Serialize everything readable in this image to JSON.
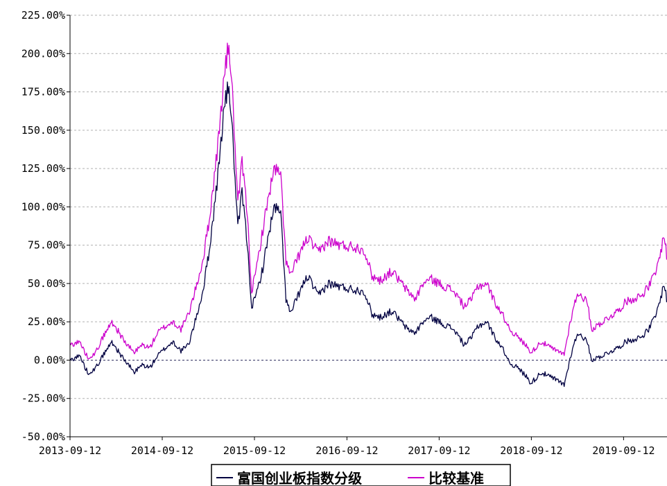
{
  "chart_data": {
    "type": "line",
    "title": "",
    "xlabel": "",
    "ylabel": "",
    "ylim": [
      -50,
      225
    ],
    "xlim": [
      "2013-09-12",
      "2020-06-30"
    ],
    "y_ticks": [
      -50,
      -25,
      0,
      25,
      50,
      75,
      100,
      125,
      150,
      175,
      200,
      225
    ],
    "y_tick_labels": [
      "-50.00%",
      "-25.00%",
      "0.00%",
      "25.00%",
      "50.00%",
      "75.00%",
      "100.00%",
      "125.00%",
      "150.00%",
      "175.00%",
      "200.00%",
      "225.00%"
    ],
    "x_ticks": [
      "2013-09-12",
      "2014-09-12",
      "2015-09-12",
      "2016-09-12",
      "2017-09-12",
      "2018-09-12",
      "2019-09-12"
    ],
    "grid": true,
    "legend_position": "bottom",
    "series": [
      {
        "name": "富国创业板指数分级",
        "color": "#000040",
        "points": [
          [
            "2013-09-12",
            0
          ],
          [
            "2013-10-20",
            3
          ],
          [
            "2013-11-20",
            -8
          ],
          [
            "2013-12-20",
            -6
          ],
          [
            "2014-01-20",
            3
          ],
          [
            "2014-02-25",
            12
          ],
          [
            "2014-03-25",
            5
          ],
          [
            "2014-04-25",
            -2
          ],
          [
            "2014-05-25",
            -8
          ],
          [
            "2014-06-25",
            -3
          ],
          [
            "2014-07-25",
            -5
          ],
          [
            "2014-08-25",
            3
          ],
          [
            "2014-09-25",
            8
          ],
          [
            "2014-10-25",
            12
          ],
          [
            "2014-11-25",
            6
          ],
          [
            "2014-12-25",
            10
          ],
          [
            "2015-01-20",
            25
          ],
          [
            "2015-02-20",
            45
          ],
          [
            "2015-03-20",
            75
          ],
          [
            "2015-04-20",
            120
          ],
          [
            "2015-05-15",
            165
          ],
          [
            "2015-06-03",
            180
          ],
          [
            "2015-06-20",
            140
          ],
          [
            "2015-07-08",
            85
          ],
          [
            "2015-07-25",
            110
          ],
          [
            "2015-08-15",
            75
          ],
          [
            "2015-09-01",
            35
          ],
          [
            "2015-09-15",
            40
          ],
          [
            "2015-10-15",
            60
          ],
          [
            "2015-11-10",
            85
          ],
          [
            "2015-12-01",
            100
          ],
          [
            "2015-12-25",
            95
          ],
          [
            "2016-01-15",
            40
          ],
          [
            "2016-02-01",
            30
          ],
          [
            "2016-03-10",
            45
          ],
          [
            "2016-04-10",
            55
          ],
          [
            "2016-05-20",
            42
          ],
          [
            "2016-07-01",
            50
          ],
          [
            "2016-08-15",
            48
          ],
          [
            "2016-10-10",
            46
          ],
          [
            "2016-11-20",
            45
          ],
          [
            "2016-12-20",
            30
          ],
          [
            "2017-01-20",
            28
          ],
          [
            "2017-03-10",
            32
          ],
          [
            "2017-05-10",
            20
          ],
          [
            "2017-06-10",
            18
          ],
          [
            "2017-07-10",
            25
          ],
          [
            "2017-08-10",
            28
          ],
          [
            "2017-09-12",
            25
          ],
          [
            "2017-11-10",
            20
          ],
          [
            "2017-12-20",
            10
          ],
          [
            "2018-01-20",
            15
          ],
          [
            "2018-02-10",
            22
          ],
          [
            "2018-03-20",
            25
          ],
          [
            "2018-04-20",
            15
          ],
          [
            "2018-05-20",
            8
          ],
          [
            "2018-06-20",
            -2
          ],
          [
            "2018-07-20",
            -5
          ],
          [
            "2018-08-20",
            -10
          ],
          [
            "2018-09-12",
            -15
          ],
          [
            "2018-10-20",
            -8
          ],
          [
            "2018-12-20",
            -13
          ],
          [
            "2019-01-20",
            -16
          ],
          [
            "2019-02-25",
            10
          ],
          [
            "2019-03-20",
            18
          ],
          [
            "2019-04-20",
            12
          ],
          [
            "2019-05-10",
            0
          ],
          [
            "2019-06-20",
            3
          ],
          [
            "2019-08-20",
            8
          ],
          [
            "2019-09-20",
            12
          ],
          [
            "2019-11-20",
            15
          ],
          [
            "2019-12-20",
            20
          ],
          [
            "2020-01-20",
            30
          ],
          [
            "2020-02-20",
            50
          ],
          [
            "2020-03-10",
            30
          ],
          [
            "2020-04-10",
            32
          ],
          [
            "2020-05-10",
            38
          ],
          [
            "2020-06-10",
            42
          ],
          [
            "2020-06-30",
            40
          ]
        ]
      },
      {
        "name": "比较基准",
        "color": "#cc00cc",
        "points": [
          [
            "2013-09-12",
            10
          ],
          [
            "2013-10-20",
            12
          ],
          [
            "2013-11-20",
            2
          ],
          [
            "2013-12-20",
            4
          ],
          [
            "2014-01-20",
            15
          ],
          [
            "2014-02-25",
            25
          ],
          [
            "2014-03-25",
            18
          ],
          [
            "2014-04-25",
            10
          ],
          [
            "2014-05-25",
            5
          ],
          [
            "2014-06-25",
            10
          ],
          [
            "2014-07-25",
            8
          ],
          [
            "2014-08-25",
            18
          ],
          [
            "2014-09-25",
            22
          ],
          [
            "2014-10-25",
            25
          ],
          [
            "2014-11-25",
            20
          ],
          [
            "2014-12-25",
            30
          ],
          [
            "2015-01-20",
            45
          ],
          [
            "2015-02-20",
            65
          ],
          [
            "2015-03-20",
            95
          ],
          [
            "2015-04-20",
            140
          ],
          [
            "2015-05-15",
            185
          ],
          [
            "2015-06-03",
            207
          ],
          [
            "2015-06-20",
            165
          ],
          [
            "2015-07-08",
            100
          ],
          [
            "2015-07-25",
            130
          ],
          [
            "2015-08-15",
            95
          ],
          [
            "2015-09-01",
            45
          ],
          [
            "2015-09-15",
            55
          ],
          [
            "2015-10-15",
            85
          ],
          [
            "2015-11-10",
            110
          ],
          [
            "2015-12-01",
            125
          ],
          [
            "2015-12-25",
            120
          ],
          [
            "2016-01-15",
            65
          ],
          [
            "2016-02-01",
            55
          ],
          [
            "2016-03-10",
            70
          ],
          [
            "2016-04-10",
            80
          ],
          [
            "2016-05-20",
            70
          ],
          [
            "2016-07-01",
            78
          ],
          [
            "2016-08-15",
            75
          ],
          [
            "2016-10-10",
            74
          ],
          [
            "2016-11-20",
            72
          ],
          [
            "2016-12-20",
            55
          ],
          [
            "2017-01-20",
            52
          ],
          [
            "2017-03-10",
            58
          ],
          [
            "2017-05-10",
            45
          ],
          [
            "2017-06-10",
            40
          ],
          [
            "2017-07-10",
            50
          ],
          [
            "2017-08-10",
            53
          ],
          [
            "2017-09-12",
            50
          ],
          [
            "2017-11-10",
            45
          ],
          [
            "2017-12-20",
            35
          ],
          [
            "2018-01-20",
            40
          ],
          [
            "2018-02-10",
            48
          ],
          [
            "2018-03-20",
            50
          ],
          [
            "2018-04-20",
            38
          ],
          [
            "2018-05-20",
            30
          ],
          [
            "2018-06-20",
            20
          ],
          [
            "2018-07-20",
            15
          ],
          [
            "2018-08-20",
            10
          ],
          [
            "2018-09-12",
            5
          ],
          [
            "2018-10-20",
            12
          ],
          [
            "2018-12-20",
            6
          ],
          [
            "2019-01-20",
            4
          ],
          [
            "2019-02-25",
            35
          ],
          [
            "2019-03-20",
            44
          ],
          [
            "2019-04-20",
            38
          ],
          [
            "2019-05-10",
            20
          ],
          [
            "2019-06-20",
            25
          ],
          [
            "2019-08-20",
            32
          ],
          [
            "2019-09-20",
            38
          ],
          [
            "2019-11-20",
            42
          ],
          [
            "2019-12-20",
            48
          ],
          [
            "2020-01-20",
            58
          ],
          [
            "2020-02-20",
            82
          ],
          [
            "2020-03-10",
            55
          ],
          [
            "2020-04-10",
            60
          ],
          [
            "2020-05-10",
            68
          ],
          [
            "2020-06-10",
            73
          ],
          [
            "2020-06-30",
            70
          ]
        ]
      }
    ]
  }
}
